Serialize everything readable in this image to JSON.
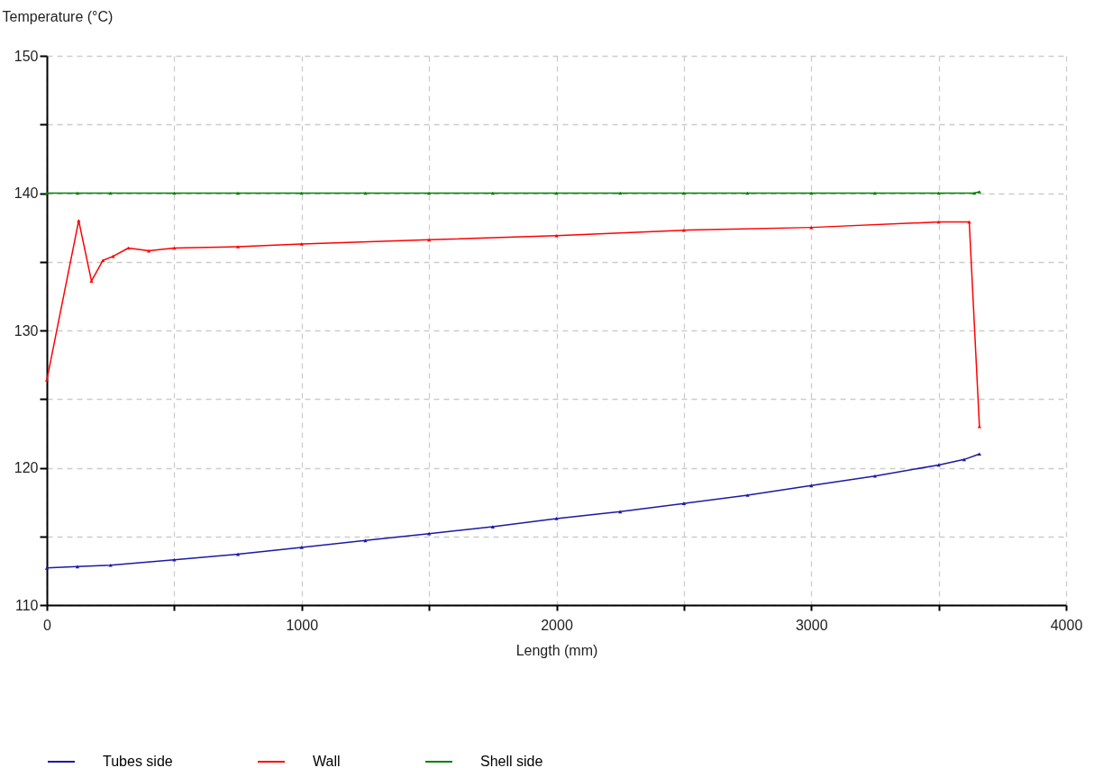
{
  "chart_data": {
    "type": "line",
    "xlabel": "Length (mm)",
    "ylabel": "Temperature (°C)",
    "xlim": [
      0,
      4000
    ],
    "xticks": [
      0,
      {
        "value": 500,
        "label": null
      },
      1000,
      {
        "value": 1500,
        "label": null
      },
      2000,
      {
        "value": 2500,
        "label": null
      },
      3000,
      {
        "value": 3500,
        "label": null
      },
      4000
    ],
    "ylim": [
      110,
      150
    ],
    "yticks": [
      110,
      {
        "value": 115,
        "label": null
      },
      120,
      {
        "value": 125,
        "label": null
      },
      130,
      {
        "value": 135,
        "label": null
      },
      140,
      {
        "value": 145,
        "label": null
      },
      150
    ],
    "grid": true,
    "legend": "bottom",
    "marker": "triangle",
    "line_style": "solid",
    "series": [
      {
        "name": "Tubes side",
        "color": "#1a1aa6",
        "x": [
          0,
          120,
          250,
          500,
          750,
          1000,
          1250,
          1500,
          1750,
          2000,
          2250,
          2500,
          2750,
          3000,
          3250,
          3500,
          3600,
          3660
        ],
        "values": [
          112.7,
          112.8,
          112.9,
          113.3,
          113.7,
          114.2,
          114.7,
          115.2,
          115.7,
          116.3,
          116.8,
          117.4,
          118.0,
          118.7,
          119.4,
          120.2,
          120.6,
          121.0
        ]
      },
      {
        "name": "Wall",
        "color": "#ff0000",
        "x": [
          0,
          125,
          175,
          220,
          260,
          320,
          400,
          500,
          750,
          1000,
          1500,
          2000,
          2500,
          3000,
          3500,
          3620,
          3660
        ],
        "values": [
          126.4,
          138.0,
          133.6,
          135.1,
          135.4,
          136.0,
          135.8,
          136.0,
          136.1,
          136.3,
          136.6,
          136.9,
          137.3,
          137.5,
          137.9,
          137.9,
          123.0
        ]
      },
      {
        "name": "Shell side",
        "color": "#008000",
        "x": [
          0,
          120,
          250,
          500,
          750,
          1000,
          1250,
          1500,
          1750,
          2000,
          2250,
          2500,
          2750,
          3000,
          3250,
          3500,
          3640,
          3660
        ],
        "values": [
          140.0,
          140.0,
          140.0,
          140.0,
          140.0,
          140.0,
          140.0,
          140.0,
          140.0,
          140.0,
          140.0,
          140.0,
          140.0,
          140.0,
          140.0,
          140.0,
          140.0,
          140.1
        ]
      }
    ]
  }
}
